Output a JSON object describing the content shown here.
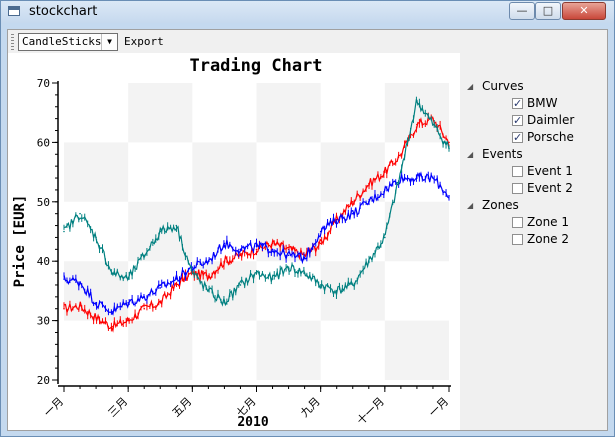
{
  "window": {
    "title": "stockchart",
    "minimize": "—",
    "maximize": "□",
    "close": "✕"
  },
  "toolbar": {
    "mode_value": "CandleSticks",
    "export_label": "Export"
  },
  "tree": {
    "groups": [
      {
        "label": "Curves",
        "items": [
          {
            "label": "BMW",
            "checked": true
          },
          {
            "label": "Daimler",
            "checked": true
          },
          {
            "label": "Porsche",
            "checked": true
          }
        ]
      },
      {
        "label": "Events",
        "items": [
          {
            "label": "Event 1",
            "checked": false
          },
          {
            "label": "Event 2",
            "checked": false
          }
        ]
      },
      {
        "label": "Zones",
        "items": [
          {
            "label": "Zone 1",
            "checked": false
          },
          {
            "label": "Zone 2",
            "checked": false
          }
        ]
      }
    ]
  },
  "chart_data": {
    "type": "line",
    "title": "Trading Chart",
    "ylabel": "Price [EUR]",
    "xlabel": "2010",
    "ylim": [
      20,
      70
    ],
    "yticks": [
      "20",
      "30",
      "40",
      "50",
      "60",
      "70"
    ],
    "xticks": [
      "一月",
      "三月",
      "五月",
      "七月",
      "九月",
      "十一月",
      "一月"
    ],
    "background": "checkerboard-bands",
    "colors": {
      "BMW": "#ff0000",
      "Daimler": "#0000ff",
      "Porsche": "#008080"
    },
    "x_months": [
      0,
      0.5,
      1,
      1.5,
      2,
      2.5,
      3,
      3.5,
      4,
      4.5,
      5,
      5.5,
      6,
      6.5,
      7,
      7.5,
      8,
      8.5,
      9,
      9.5,
      10,
      10.5,
      11,
      11.5,
      12
    ],
    "series": [
      {
        "name": "BMW",
        "values": [
          32,
          32.5,
          30.5,
          29,
          30,
          32,
          33,
          36,
          38,
          37.5,
          40,
          41,
          42,
          43,
          42,
          41,
          43,
          47,
          50,
          53,
          55,
          58,
          63,
          64,
          60
        ]
      },
      {
        "name": "Daimler",
        "values": [
          37,
          36.5,
          33,
          31.5,
          33,
          34,
          35.5,
          37,
          39,
          40,
          43,
          42,
          42.5,
          42,
          41,
          40.5,
          45,
          47,
          48,
          50,
          52,
          54,
          54,
          54,
          51
        ]
      },
      {
        "name": "Porsche",
        "values": [
          45,
          48,
          44,
          38,
          37,
          41,
          45,
          46,
          38,
          35,
          33,
          36,
          38,
          37,
          39,
          38,
          36,
          35,
          36,
          40,
          44,
          55,
          67,
          63,
          59
        ]
      }
    ]
  }
}
